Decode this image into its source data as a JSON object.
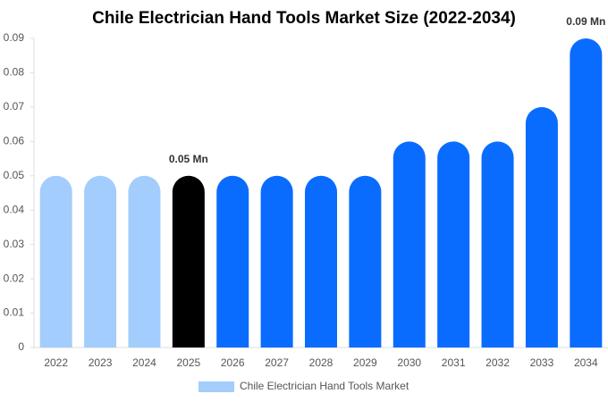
{
  "chart_data": {
    "type": "bar",
    "title": "Chile Electrician Hand Tools Market Size (2022-2034)",
    "categories": [
      "2022",
      "2023",
      "2024",
      "2025",
      "2026",
      "2027",
      "2028",
      "2029",
      "2030",
      "2031",
      "2032",
      "2033",
      "2034"
    ],
    "series": [
      {
        "name": "Chile Electrician Hand Tools Market",
        "color": "#a3cdfc",
        "colors": [
          "#a3cdfc",
          "#a3cdfc",
          "#a3cdfc",
          "#000000",
          "#0a6cff",
          "#0a6cff",
          "#0a6cff",
          "#0a6cff",
          "#0a6cff",
          "#0a6cff",
          "#0a6cff",
          "#0a6cff",
          "#0a6cff"
        ],
        "values": [
          0.05,
          0.05,
          0.05,
          0.05,
          0.05,
          0.05,
          0.05,
          0.05,
          0.06,
          0.06,
          0.06,
          0.07,
          0.09
        ],
        "value_labels": [
          null,
          null,
          null,
          "0.05 Mn",
          null,
          null,
          null,
          null,
          null,
          null,
          null,
          null,
          "0.09 Mn"
        ]
      }
    ],
    "ylim": [
      0,
      0.09
    ],
    "yticks": [
      0,
      0.01,
      0.02,
      0.03,
      0.04,
      0.05,
      0.06,
      0.07,
      0.08,
      0.09
    ],
    "grid": false,
    "legend": "bottom"
  }
}
